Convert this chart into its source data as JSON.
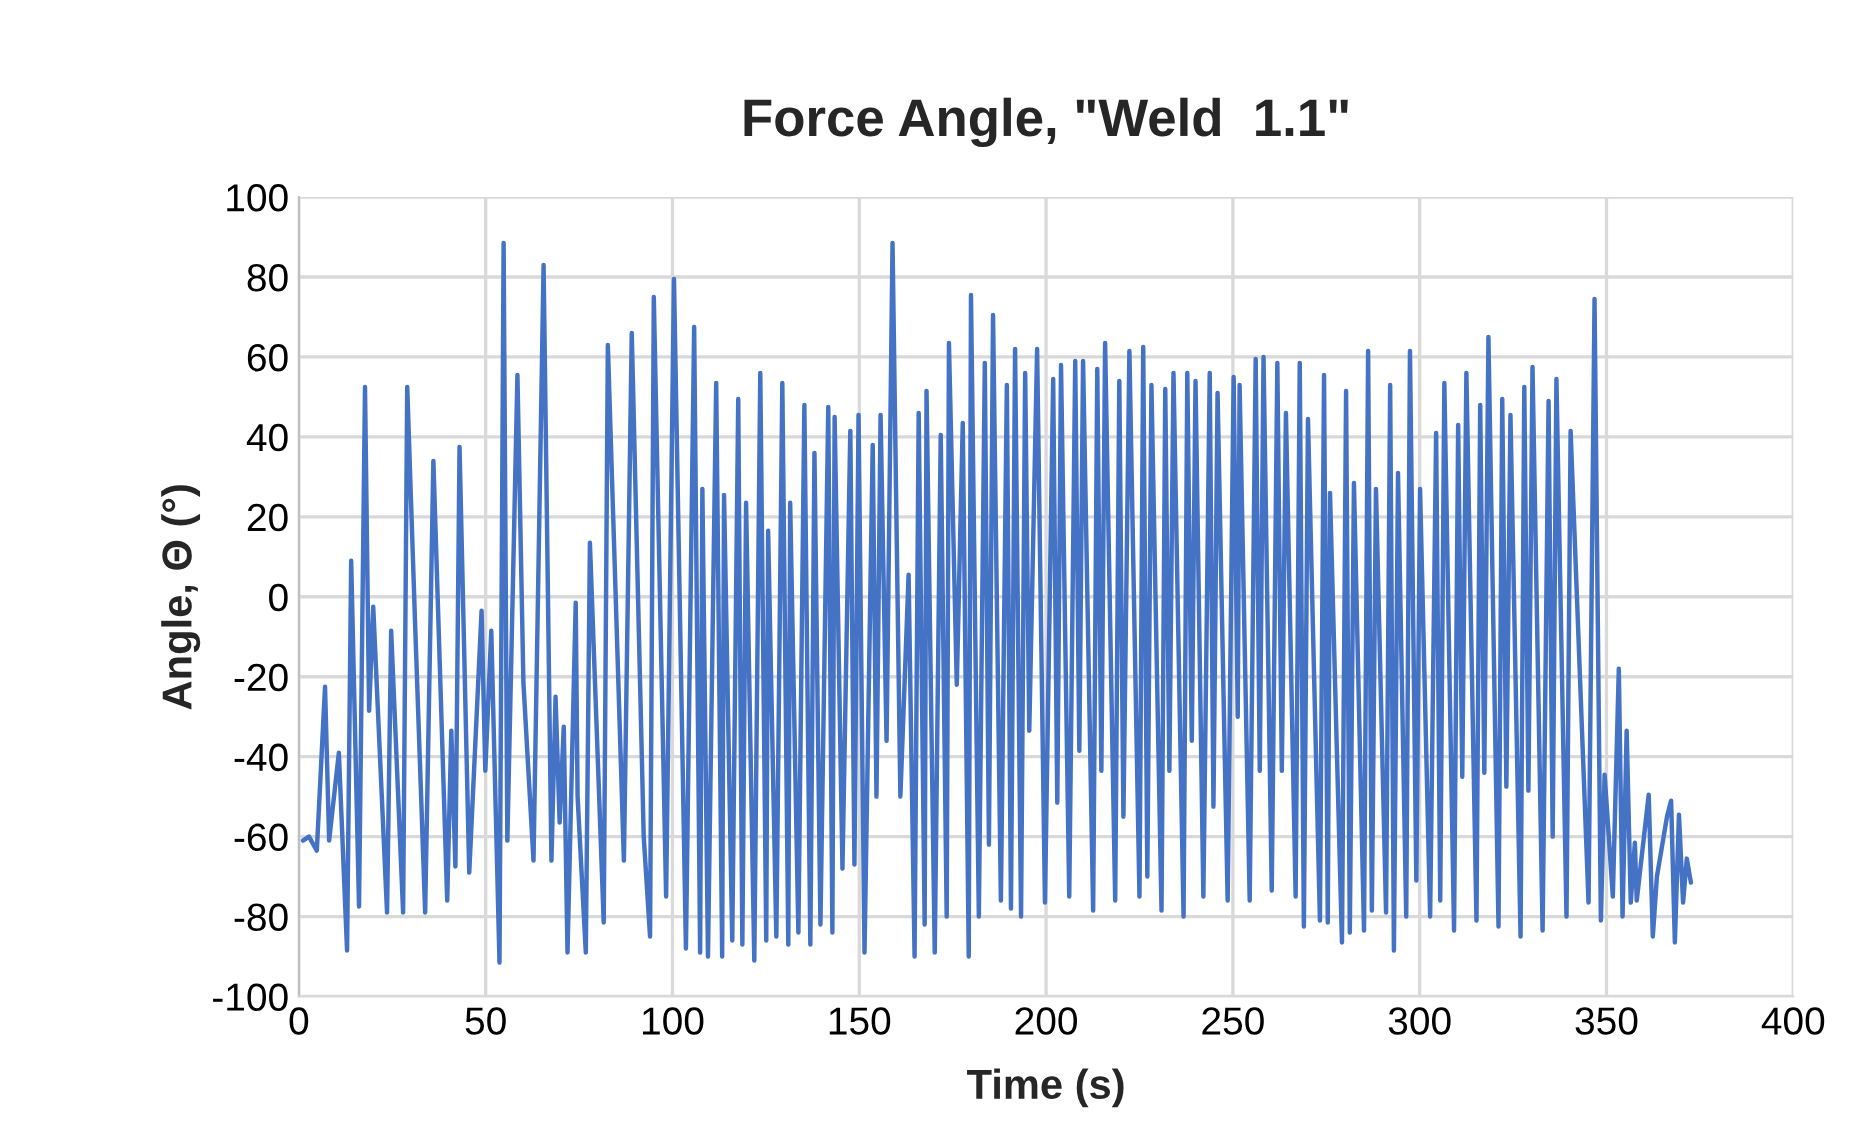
{
  "chart_data": {
    "type": "line",
    "title": "Force Angle, \"Weld  1.1\"",
    "xlabel": "Time (s)",
    "ylabel": "Angle, Θ (°)",
    "xlim": [
      0,
      400
    ],
    "xticks": [
      0,
      50,
      100,
      150,
      200,
      250,
      300,
      350,
      400
    ],
    "ylim": [
      -100,
      100
    ],
    "yticks": [
      -100,
      -80,
      -60,
      -40,
      -20,
      0,
      20,
      40,
      60,
      80,
      100
    ],
    "grid": true,
    "marker": "none",
    "line_style": "solid",
    "series": [
      {
        "color": "#4472c4",
        "x": [
          1.1,
          2.7,
          4.8,
          7.0,
          8.1,
          10.7,
          12.9,
          14.0,
          16.1,
          17.7,
          18.8,
          19.9,
          23.6,
          24.7,
          27.9,
          29.0,
          31.1,
          33.8,
          36.0,
          39.7,
          40.8,
          41.9,
          43.0,
          45.6,
          48.9,
          49.9,
          51.5,
          53.7,
          54.8,
          55.8,
          58.5,
          60.1,
          62.8,
          65.5,
          67.6,
          68.7,
          69.8,
          70.9,
          71.9,
          74.1,
          74.6,
          76.8,
          77.9,
          81.6,
          82.7,
          87.0,
          89.1,
          92.3,
          94.0,
          95.0,
          98.3,
          100.4,
          103.6,
          105.8,
          107.4,
          108.0,
          109.5,
          111.7,
          113.3,
          113.8,
          116.0,
          117.6,
          118.7,
          119.7,
          121.9,
          123.5,
          125.1,
          125.6,
          127.8,
          129.4,
          131.0,
          131.5,
          133.7,
          135.3,
          136.9,
          138.0,
          139.6,
          141.7,
          142.8,
          143.4,
          145.5,
          147.6,
          148.7,
          149.8,
          151.4,
          153.6,
          154.6,
          155.7,
          157.3,
          158.9,
          161.0,
          163.2,
          164.8,
          165.9,
          167.5,
          168.0,
          170.2,
          171.8,
          173.4,
          174.0,
          176.1,
          177.7,
          179.3,
          179.9,
          182.0,
          183.6,
          184.7,
          185.8,
          187.9,
          189.5,
          190.6,
          191.7,
          193.3,
          194.4,
          195.5,
          197.6,
          199.7,
          201.9,
          203.0,
          204.0,
          206.2,
          207.8,
          208.9,
          209.9,
          212.6,
          213.7,
          214.8,
          215.8,
          218.5,
          219.6,
          220.7,
          222.3,
          225.0,
          226.0,
          227.1,
          228.2,
          230.9,
          231.9,
          233.0,
          234.1,
          236.8,
          237.8,
          239.0,
          240.0,
          242.1,
          243.8,
          244.8,
          245.9,
          248.6,
          250.2,
          251.3,
          251.8,
          254.5,
          256.1,
          257.2,
          258.2,
          260.4,
          261.9,
          263.1,
          264.2,
          266.8,
          267.9,
          269.0,
          270.1,
          273.3,
          274.4,
          275.4,
          276.0,
          279.2,
          280.3,
          281.3,
          282.4,
          285.1,
          286.2,
          287.2,
          288.3,
          291.0,
          292.1,
          293.1,
          294.2,
          296.4,
          297.4,
          299.1,
          300.1,
          302.8,
          304.4,
          305.5,
          306.6,
          309.2,
          310.3,
          311.4,
          312.5,
          315.2,
          316.2,
          317.3,
          318.4,
          321.1,
          322.1,
          323.2,
          324.3,
          327.0,
          328.0,
          329.1,
          330.2,
          332.9,
          334.5,
          335.6,
          336.6,
          339.3,
          340.4,
          345.2,
          346.8,
          348.5,
          349.5,
          351.7,
          353.3,
          354.3,
          355.4,
          356.5,
          357.6,
          358.1,
          361.3,
          362.4,
          363.5,
          366.2,
          367.3,
          368.3,
          369.4,
          370.5,
          371.5,
          372.6
        ],
        "values": [
          -61,
          -60,
          -63.5,
          -22.5,
          -61,
          -39,
          -88.5,
          9,
          -77.5,
          52.5,
          -28.5,
          -2.5,
          -79,
          -8.5,
          -79,
          52.5,
          -6.5,
          -79,
          34,
          -76,
          -33.5,
          -67.5,
          37.5,
          -69,
          -3.5,
          -43.5,
          -8.5,
          -91.5,
          88.5,
          -61,
          55.5,
          -21.5,
          -66,
          83,
          -66,
          -25,
          -56.5,
          -32.5,
          -89,
          -1.5,
          -50,
          -89,
          13.5,
          -81.5,
          63,
          -66,
          66,
          -60,
          -85,
          75,
          -75,
          79.5,
          -88,
          67.5,
          -89,
          27,
          -90,
          53.5,
          -90,
          25.5,
          -86,
          49.5,
          -87,
          23.5,
          -91,
          56,
          -86,
          16.5,
          -85,
          53.5,
          -87,
          23.5,
          -84,
          48,
          -87,
          36,
          -82,
          47.5,
          -84,
          45,
          -68,
          41.5,
          -67,
          45.5,
          -89,
          38,
          -50,
          45.5,
          -36,
          88.5,
          -50,
          5.5,
          -90,
          46,
          -82,
          51.5,
          -89,
          40.5,
          -80,
          63.5,
          -22,
          43.5,
          -90,
          75.5,
          -80,
          58.5,
          -62,
          70.5,
          -76,
          53,
          -78,
          62,
          -80,
          56,
          -33.5,
          62,
          -76.5,
          54.5,
          -51.5,
          58,
          -75,
          59,
          -38.5,
          59,
          -78.5,
          57,
          -43.5,
          63.5,
          -76,
          54,
          -55,
          61.5,
          -75,
          62.5,
          -70,
          53,
          -78.5,
          52,
          -43.5,
          56,
          -80,
          56,
          -36,
          54,
          -75,
          56,
          -52.5,
          51,
          -76,
          55,
          -30,
          53,
          -76,
          59.5,
          -43.5,
          60,
          -73.5,
          58.5,
          -43.5,
          46,
          -75,
          58.5,
          -82.5,
          44.5,
          -81,
          55.5,
          -81.5,
          26,
          -86.5,
          51.5,
          -84,
          28.5,
          -83.5,
          61.5,
          -78.5,
          27,
          -79,
          53,
          -88.5,
          31,
          -80,
          61.5,
          -71,
          27,
          -80,
          41,
          -76,
          53.5,
          -83.5,
          43,
          -45,
          56,
          -81,
          48,
          -44,
          65,
          -82.5,
          49.5,
          -47.5,
          45.5,
          -85,
          52.5,
          -48.5,
          57.5,
          -83.5,
          49,
          -60,
          54.5,
          -80,
          41.5,
          -76.5,
          74.5,
          -81,
          -44.5,
          -75,
          -18,
          -80,
          -33.5,
          -76.5,
          -61.5,
          -76,
          -49.5,
          -85,
          -70,
          -55,
          -51,
          -86.5,
          -54.5,
          -76.5,
          -65.5,
          -71.5
        ]
      }
    ]
  }
}
